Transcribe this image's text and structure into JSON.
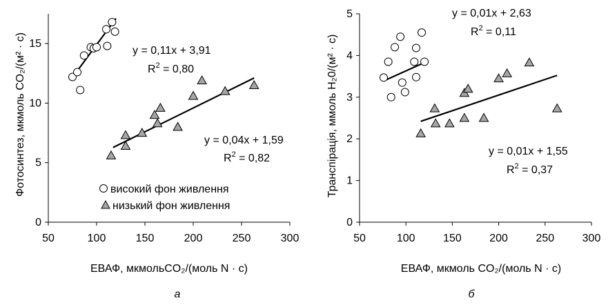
{
  "chart_data": [
    {
      "type": "scatter",
      "panel_label": "а",
      "xlabel": "ЕВАФ, мкмольCO₂/(моль N · с)",
      "ylabel": "Фотосинтез, мкмоль CO₂/(м² · с)",
      "xlim": [
        50,
        300
      ],
      "ylim": [
        0,
        17.5
      ],
      "xticks": [
        50,
        100,
        150,
        200,
        250,
        300
      ],
      "yticks": [
        0,
        5,
        10,
        15
      ],
      "tick_labels_x": [
        "50",
        "100",
        "150",
        "200",
        "250",
        "300"
      ],
      "tick_labels_y": [
        "0",
        "5",
        "10",
        "15"
      ],
      "grid": false,
      "legend_position": "bottom-left",
      "series": [
        {
          "name": "високий фон живлення",
          "marker": "circle-open",
          "points": [
            [
              75,
              12.2
            ],
            [
              80,
              12.6
            ],
            [
              83,
              11.1
            ],
            [
              87,
              14.0
            ],
            [
              94,
              14.7
            ],
            [
              97,
              14.6
            ],
            [
              100,
              14.7
            ],
            [
              110,
              16.2
            ],
            [
              111,
              14.8
            ],
            [
              116,
              16.8
            ],
            [
              119,
              16.0
            ]
          ],
          "trend": {
            "equation": "y = 0,11x + 3,91",
            "r2_prefix": "R",
            "r2_exp": "2",
            "r2_value": " = 0,80",
            "slope": 0.11,
            "intercept": 3.91,
            "x_range": [
              75,
              120
            ]
          }
        },
        {
          "name": "низький фон живлення",
          "marker": "triangle-filled",
          "points": [
            [
              115,
              5.6
            ],
            [
              130,
              7.3
            ],
            [
              130,
              6.4
            ],
            [
              147,
              7.5
            ],
            [
              160,
              9.0
            ],
            [
              163,
              8.3
            ],
            [
              166,
              9.6
            ],
            [
              184,
              8.0
            ],
            [
              200,
              10.6
            ],
            [
              209,
              11.9
            ],
            [
              233,
              11.0
            ],
            [
              263,
              11.5
            ]
          ],
          "trend": {
            "equation": "y = 0,04x + 1,59",
            "r2_prefix": "R",
            "r2_exp": "2",
            "r2_value": " = 0,82",
            "slope": 0.04,
            "intercept": 1.59,
            "x_range": [
              117,
              263
            ]
          }
        }
      ]
    },
    {
      "type": "scatter",
      "panel_label": "б",
      "xlabel": "ЕВАФ, мкмоль CO₂/(моль N · с)",
      "ylabel": "Транспірація, ммоль H₂0/(м² · с)",
      "xlim": [
        50,
        300
      ],
      "ylim": [
        0,
        5
      ],
      "xticks": [
        50,
        100,
        150,
        200,
        250,
        300
      ],
      "yticks": [
        0,
        1,
        2,
        3,
        4,
        5
      ],
      "tick_labels_x": [
        "50",
        "100",
        "150",
        "200",
        "250",
        "300"
      ],
      "tick_labels_y": [
        "0",
        "1",
        "2",
        "3",
        "4",
        "5"
      ],
      "grid": false,
      "series": [
        {
          "name": "високий фон живлення",
          "marker": "circle-open",
          "points": [
            [
              76,
              3.47
            ],
            [
              81,
              3.85
            ],
            [
              84,
              3.0
            ],
            [
              88,
              4.2
            ],
            [
              94,
              4.45
            ],
            [
              96,
              3.35
            ],
            [
              99,
              3.12
            ],
            [
              109,
              3.85
            ],
            [
              111,
              4.18
            ],
            [
              111,
              3.48
            ],
            [
              117,
              4.55
            ],
            [
              120,
              3.85
            ]
          ],
          "trend": {
            "equation": "y = 0,01x + 2,63",
            "r2_prefix": "R",
            "r2_exp": "2",
            "r2_value": " = 0,11",
            "slope": 0.01,
            "intercept": 2.63,
            "x_range": [
              76,
              120
            ]
          }
        },
        {
          "name": "низький фон живлення",
          "marker": "triangle-filled",
          "points": [
            [
              116,
              2.13
            ],
            [
              131,
              2.73
            ],
            [
              132,
              2.37
            ],
            [
              147,
              2.37
            ],
            [
              163,
              3.1
            ],
            [
              163,
              2.5
            ],
            [
              167,
              3.2
            ],
            [
              184,
              2.5
            ],
            [
              200,
              3.45
            ],
            [
              209,
              3.57
            ],
            [
              233,
              3.83
            ],
            [
              263,
              2.73
            ]
          ],
          "trend": {
            "equation": "y = 0,01x + 1,55",
            "r2_prefix": "R",
            "r2_exp": "2",
            "r2_value": " = 0,37",
            "slope": 0.0075,
            "intercept": 1.55,
            "x_range": [
              116,
              263
            ]
          }
        }
      ]
    }
  ]
}
